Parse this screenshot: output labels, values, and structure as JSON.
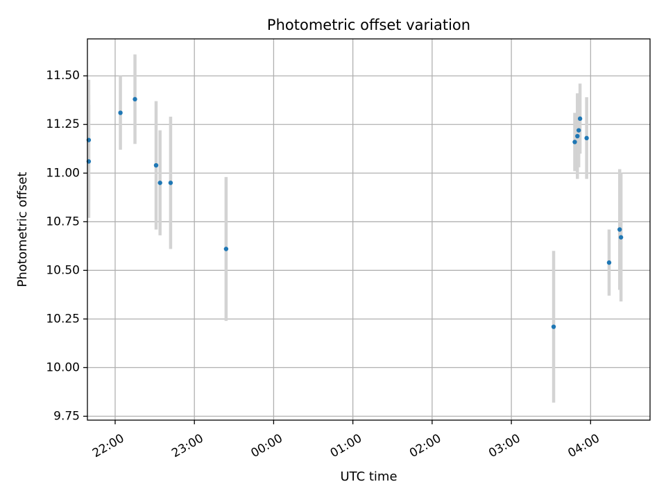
{
  "chart_data": {
    "type": "scatter",
    "title": "Photometric offset variation",
    "xlabel": "UTC time",
    "ylabel": "Photometric offset",
    "x_axis": "time",
    "xlim": [
      "21:39",
      "04:45"
    ],
    "ylim": [
      9.73,
      11.69
    ],
    "x_ticks": [
      "22:00",
      "23:00",
      "00:00",
      "01:00",
      "02:00",
      "03:00",
      "04:00"
    ],
    "y_ticks": [
      "9.75",
      "10.00",
      "10.25",
      "10.50",
      "10.75",
      "11.00",
      "11.25",
      "11.50"
    ],
    "grid": true,
    "point_color": "#1f77b4",
    "errorbar_color": "#d3d3d3",
    "points": [
      {
        "x": "21:40",
        "y": 11.06,
        "err": 0.29
      },
      {
        "x": "21:40",
        "y": 11.17,
        "err": 0.31
      },
      {
        "x": "22:04",
        "y": 11.31,
        "err": 0.19
      },
      {
        "x": "22:15",
        "y": 11.38,
        "err": 0.23
      },
      {
        "x": "22:31",
        "y": 11.04,
        "err": 0.33
      },
      {
        "x": "22:34",
        "y": 10.95,
        "err": 0.27
      },
      {
        "x": "22:42",
        "y": 10.95,
        "err": 0.34
      },
      {
        "x": "23:24",
        "y": 10.61,
        "err": 0.37
      },
      {
        "x": "03:32",
        "y": 10.21,
        "err": 0.39
      },
      {
        "x": "03:48",
        "y": 11.16,
        "err": 0.15
      },
      {
        "x": "03:50",
        "y": 11.19,
        "err": 0.22
      },
      {
        "x": "03:51",
        "y": 11.22,
        "err": 0.19
      },
      {
        "x": "03:52",
        "y": 11.28,
        "err": 0.18
      },
      {
        "x": "03:57",
        "y": 11.18,
        "err": 0.21
      },
      {
        "x": "04:14",
        "y": 10.54,
        "err": 0.17
      },
      {
        "x": "04:22",
        "y": 10.71,
        "err": 0.31
      },
      {
        "x": "04:23",
        "y": 10.67,
        "err": 0.33
      }
    ]
  }
}
